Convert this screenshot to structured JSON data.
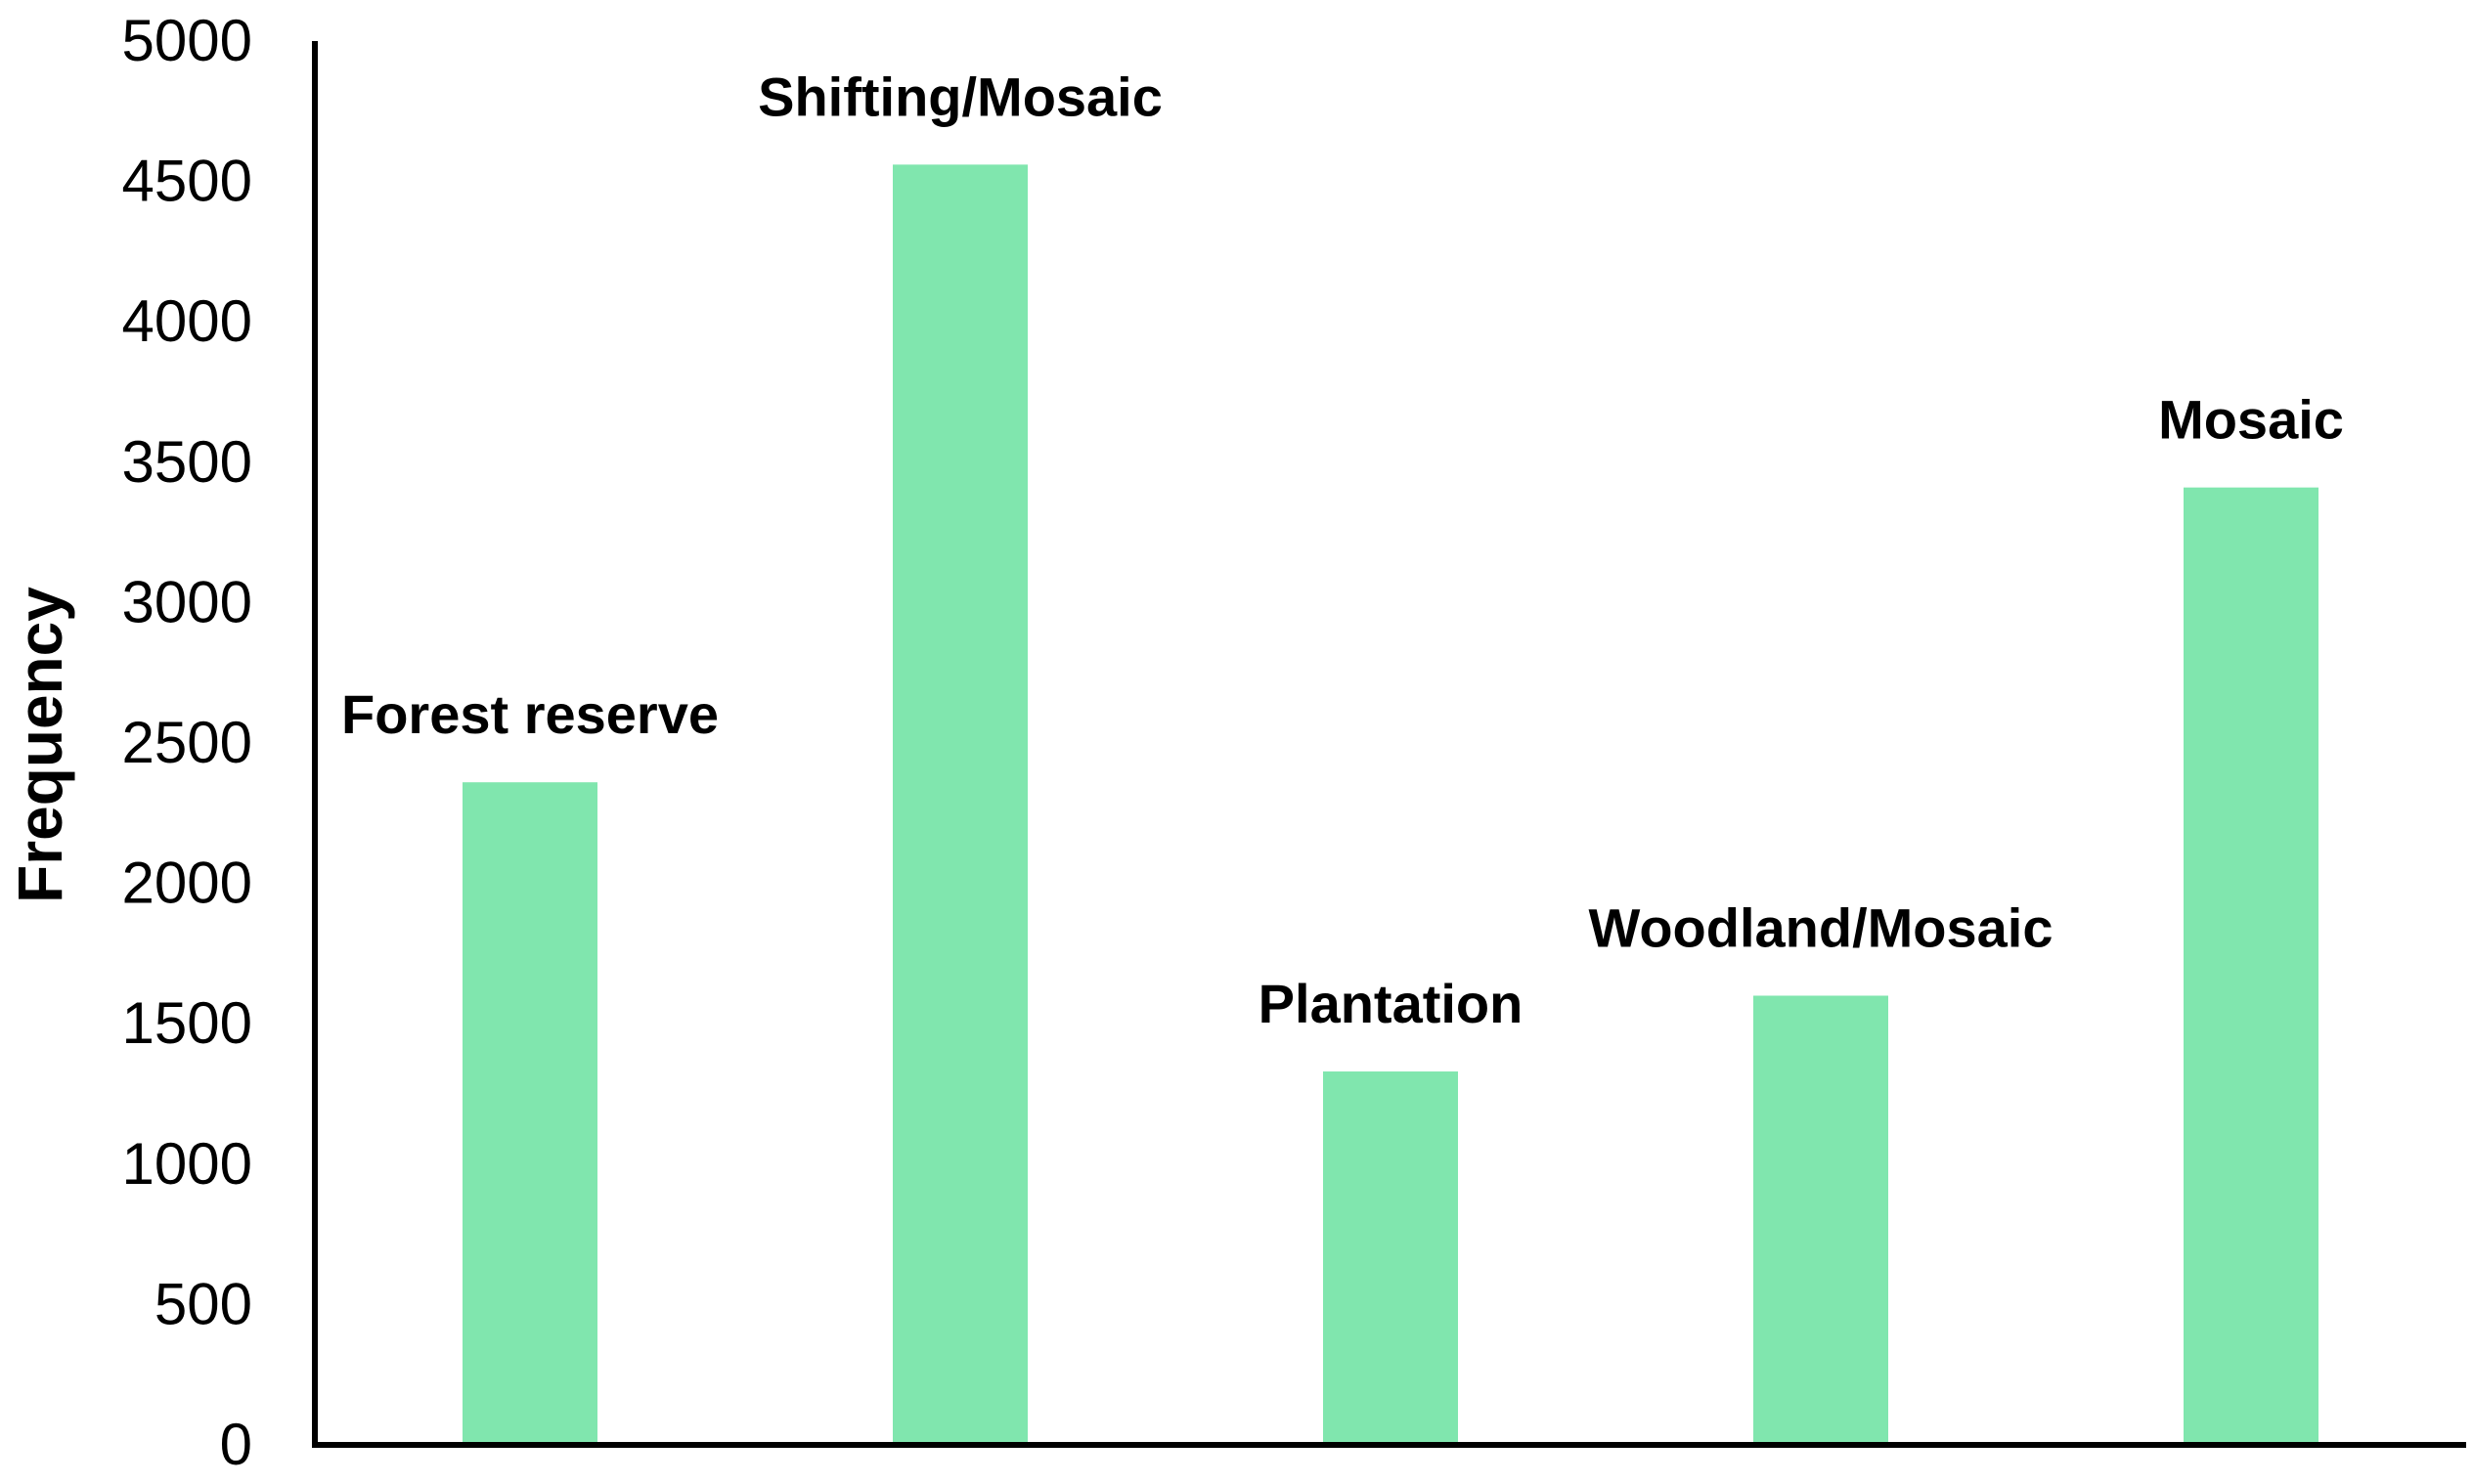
{
  "chart_data": {
    "type": "bar",
    "title": "",
    "xlabel": "",
    "ylabel": "Frequency",
    "categories": [
      "Forest reserve",
      "Shifting/Mosaic",
      "Plantation",
      "Woodland/Mosaic",
      "Mosaic"
    ],
    "values": [
      2360,
      4560,
      1330,
      1600,
      3410
    ],
    "ylim": [
      0,
      5000
    ],
    "yticks": [
      "0",
      "500",
      "1000",
      "1500",
      "2000",
      "2500",
      "3000",
      "3500",
      "4000",
      "4500",
      "5000"
    ],
    "bar_color": "#80e6ae",
    "grid": false,
    "legend": "none"
  }
}
